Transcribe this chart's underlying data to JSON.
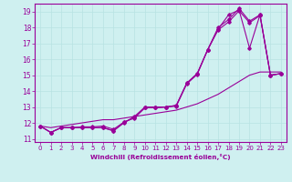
{
  "xlabel": "Windchill (Refroidissement éolien,°C)",
  "ylabel": "",
  "background_color": "#cff0f0",
  "grid_color": "#b8e2e2",
  "line_color": "#990099",
  "xlim": [
    -0.5,
    23.5
  ],
  "ylim": [
    10.8,
    19.5
  ],
  "yticks": [
    11,
    12,
    13,
    14,
    15,
    16,
    17,
    18,
    19
  ],
  "xticks": [
    0,
    1,
    2,
    3,
    4,
    5,
    6,
    7,
    8,
    9,
    10,
    11,
    12,
    13,
    14,
    15,
    16,
    17,
    18,
    19,
    20,
    21,
    22,
    23
  ],
  "series_steep_x": [
    0,
    1,
    2,
    3,
    4,
    5,
    6,
    7,
    8,
    9,
    10,
    11,
    12,
    13,
    14,
    15,
    16,
    17,
    18,
    19,
    20,
    21,
    22,
    23
  ],
  "series_steep_y": [
    11.8,
    11.4,
    11.7,
    11.7,
    11.7,
    11.7,
    11.7,
    11.5,
    12.0,
    12.4,
    13.0,
    13.0,
    13.0,
    13.1,
    14.5,
    15.1,
    16.6,
    18.0,
    18.5,
    19.2,
    18.4,
    18.8,
    15.0,
    15.1
  ],
  "series_steep2_x": [
    0,
    1,
    2,
    3,
    4,
    5,
    6,
    7,
    8,
    9,
    10,
    11,
    12,
    13,
    14,
    15,
    16,
    17,
    18,
    19,
    20,
    21,
    22,
    23
  ],
  "series_steep2_y": [
    11.8,
    11.4,
    11.7,
    11.7,
    11.7,
    11.7,
    11.7,
    11.5,
    12.05,
    12.3,
    12.95,
    12.95,
    13.0,
    13.05,
    14.45,
    15.05,
    16.6,
    17.85,
    18.35,
    19.05,
    18.3,
    18.75,
    15.0,
    15.1
  ],
  "series_steep3_x": [
    0,
    1,
    2,
    3,
    4,
    5,
    6,
    7,
    8,
    9,
    10,
    11,
    12,
    13,
    14,
    15,
    16,
    17,
    18,
    19,
    20,
    21,
    22,
    23
  ],
  "series_steep3_y": [
    11.8,
    11.4,
    11.7,
    11.7,
    11.75,
    11.75,
    11.8,
    11.6,
    12.05,
    12.35,
    12.95,
    12.95,
    13.0,
    13.1,
    14.5,
    15.1,
    16.6,
    17.9,
    18.8,
    19.1,
    16.7,
    18.8,
    15.0,
    15.1
  ],
  "series_linear_x": [
    0,
    1,
    2,
    3,
    4,
    5,
    6,
    7,
    8,
    9,
    10,
    11,
    12,
    13,
    14,
    15,
    16,
    17,
    18,
    19,
    20,
    21,
    22,
    23
  ],
  "series_linear_y": [
    11.8,
    11.7,
    11.8,
    11.9,
    12.0,
    12.1,
    12.2,
    12.2,
    12.3,
    12.4,
    12.5,
    12.6,
    12.7,
    12.8,
    13.0,
    13.2,
    13.5,
    13.8,
    14.2,
    14.6,
    15.0,
    15.2,
    15.2,
    15.2
  ]
}
